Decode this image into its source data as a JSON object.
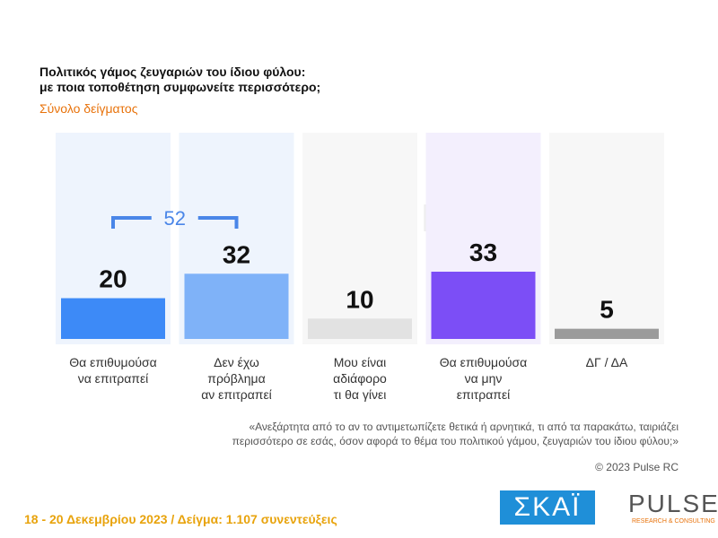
{
  "chart_data": {
    "type": "bar",
    "title": "Πολιτικός γάμος ζευγαριών του ίδιου φύλου:\nμε ποια τοποθέτηση συμφωνείτε περισσότερο;",
    "subtitle": "Σύνολο δείγματος",
    "categories": [
      "Θα επιθυμούσα\nνα επιτραπεί",
      "Δεν έχω\nπρόβλημα\nαν επιτραπεί",
      "Μου είναι\nαδιάφορο\nτι θα γίνει",
      "Θα επιθυμούσα\nνα μην\nεπιτραπεί",
      "ΔΓ / ΔΑ"
    ],
    "values": [
      20,
      32,
      10,
      33,
      5
    ],
    "colors": [
      "#3d8af7",
      "#7fb2f8",
      "#e2e2e2",
      "#7c4ef6",
      "#9b9b9b"
    ],
    "panel_colors": [
      "#eef4fd",
      "#eef4fd",
      "#f7f7f7",
      "#f3effd",
      "#f7f7f7"
    ],
    "bracket_value": 52,
    "note": "«Ανεξάρτητα από το αν το αντιμετωπίζετε θετικά ή αρνητικά, τι από τα παρακάτω, ταιριάζει\nπερισσότερο σε εσάς, όσον αφορά το θέμα του πολιτικού γάμου, ζευγαριών του ίδιου φύλου;»"
  },
  "copyright": "© 2023 Pulse RC",
  "footer": "18 - 20 Δεκεμβρίου  2023  /  Δείγμα:  1.107 συνεντεύξεις",
  "logos": {
    "skai": "ΣΚΑΪ",
    "pulse": "PULSE",
    "pulse_sub": "RESEARCH & CONSULTING"
  }
}
